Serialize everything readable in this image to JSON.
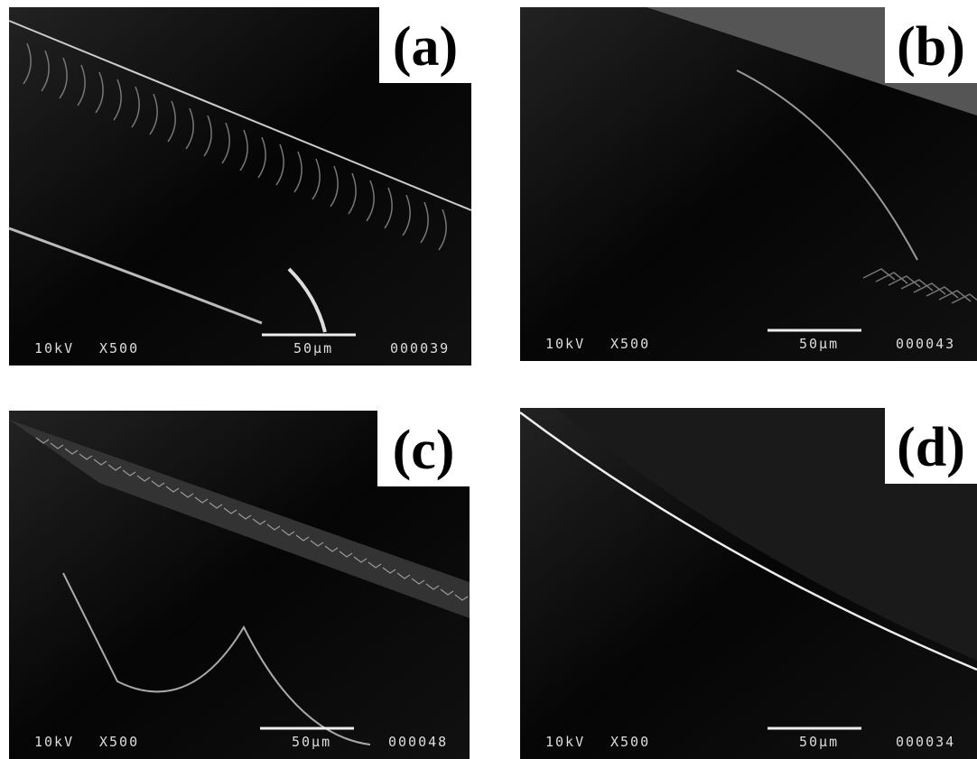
{
  "panels": [
    {
      "label": "(a)",
      "voltage": "10kV",
      "magnification": "X500",
      "scale": "50µm",
      "number": "000039"
    },
    {
      "label": "(b)",
      "voltage": "10kV",
      "magnification": "X500",
      "scale": "50µm",
      "number": "000043"
    },
    {
      "label": "(c)",
      "voltage": "10kV",
      "magnification": "X500",
      "scale": "50µm",
      "number": "000048"
    },
    {
      "label": "(d)",
      "voltage": "10kV",
      "magnification": "X500",
      "scale": "50µm",
      "number": "000034"
    }
  ]
}
